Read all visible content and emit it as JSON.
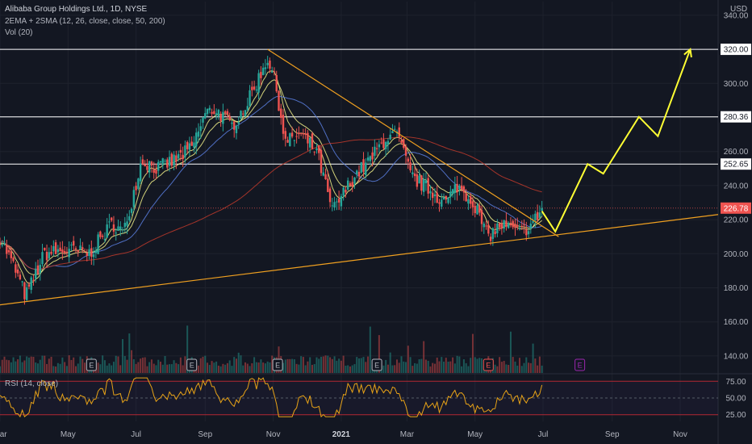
{
  "header": {
    "title": "Alibaba Group Holdings Ltd., 1D, NYSE",
    "indicator_ma": "2EMA + 2SMA (12, 26, close, close, 50, 200)",
    "indicator_vol": "Vol (20)",
    "currency": "USD"
  },
  "rsi": {
    "label": "RSI (14, close)",
    "levels": [
      "75.00",
      "50.00",
      "25.00"
    ]
  },
  "colors": {
    "background": "#131722",
    "up": "#26a69a",
    "down": "#ef5350",
    "ema_fast": "#f5f28a",
    "ema_slow": "#5b7fe0",
    "sma_200": "#c0392b",
    "trendline": "#f0a020",
    "projection": "#ffff33",
    "level_line": "#ffffff",
    "rsi_line": "#e8a317",
    "rsi_band": "#b22833",
    "earnings": "#b2b5be",
    "earnings_upcoming": "#9c27b0",
    "last_price": "#ef5350"
  },
  "chart_data": {
    "type": "candlestick",
    "symbol": "Alibaba Group Holdings Ltd.",
    "interval": "1D",
    "exchange": "NYSE",
    "y_axis": {
      "unit": "USD",
      "ticks": [
        140,
        160,
        180,
        200,
        220,
        240,
        260,
        280,
        300,
        320,
        340
      ],
      "tick_labels": [
        "140.00",
        "160.00",
        "180.00",
        "200.00",
        "220.00",
        "240.00",
        "260.00",
        "280.00",
        "300.00",
        "320.00",
        "340.00"
      ],
      "range": [
        130,
        348
      ]
    },
    "x_axis": {
      "labels": [
        "Mar",
        "May",
        "Jul",
        "Sep",
        "Nov",
        "2021",
        "Mar",
        "May",
        "Jul",
        "Sep",
        "Nov"
      ],
      "dates": [
        "2020-03-01",
        "2020-05-01",
        "2020-07-01",
        "2020-09-01",
        "2020-11-01",
        "2021-01-01",
        "2021-03-01",
        "2021-05-01",
        "2021-07-01",
        "2021-09-01",
        "2021-11-01"
      ],
      "range": [
        "2020-03-01",
        "2021-12-05"
      ]
    },
    "horizontal_levels": [
      {
        "price": 320.0,
        "label": "320.00"
      },
      {
        "price": 280.36,
        "label": "280.36"
      },
      {
        "price": 252.65,
        "label": "252.65"
      }
    ],
    "last_price": {
      "price": 226.78,
      "label": "226.78"
    },
    "price_path": [
      {
        "date": "2020-03-01",
        "close": 210
      },
      {
        "date": "2020-03-15",
        "close": 190
      },
      {
        "date": "2020-03-24",
        "close": 175
      },
      {
        "date": "2020-04-10",
        "close": 200
      },
      {
        "date": "2020-05-01",
        "close": 202
      },
      {
        "date": "2020-05-20",
        "close": 200
      },
      {
        "date": "2020-06-10",
        "close": 218
      },
      {
        "date": "2020-06-20",
        "close": 212
      },
      {
        "date": "2020-07-06",
        "close": 255
      },
      {
        "date": "2020-07-20",
        "close": 250
      },
      {
        "date": "2020-08-05",
        "close": 255
      },
      {
        "date": "2020-08-20",
        "close": 262
      },
      {
        "date": "2020-09-01",
        "close": 282
      },
      {
        "date": "2020-09-10",
        "close": 285
      },
      {
        "date": "2020-09-25",
        "close": 275
      },
      {
        "date": "2020-10-10",
        "close": 290
      },
      {
        "date": "2020-10-27",
        "close": 315
      },
      {
        "date": "2020-11-03",
        "close": 300
      },
      {
        "date": "2020-11-12",
        "close": 265
      },
      {
        "date": "2020-11-25",
        "close": 270
      },
      {
        "date": "2020-12-10",
        "close": 260
      },
      {
        "date": "2020-12-24",
        "close": 225
      },
      {
        "date": "2020-12-31",
        "close": 232
      },
      {
        "date": "2021-01-12",
        "close": 245
      },
      {
        "date": "2021-01-27",
        "close": 255
      },
      {
        "date": "2021-02-10",
        "close": 268
      },
      {
        "date": "2021-02-20",
        "close": 270
      },
      {
        "date": "2021-03-05",
        "close": 245
      },
      {
        "date": "2021-03-20",
        "close": 238
      },
      {
        "date": "2021-04-05",
        "close": 230
      },
      {
        "date": "2021-04-15",
        "close": 240
      },
      {
        "date": "2021-04-30",
        "close": 230
      },
      {
        "date": "2021-05-12",
        "close": 210
      },
      {
        "date": "2021-05-25",
        "close": 217
      },
      {
        "date": "2021-06-10",
        "close": 212
      },
      {
        "date": "2021-06-22",
        "close": 218
      },
      {
        "date": "2021-06-30",
        "close": 226.78
      }
    ],
    "trendlines": [
      {
        "name": "descending",
        "points": [
          {
            "date": "2020-10-27",
            "price": 320
          },
          {
            "date": "2021-07-15",
            "price": 210
          }
        ]
      },
      {
        "name": "ascending",
        "points": [
          {
            "date": "2020-03-01",
            "price": 170
          },
          {
            "date": "2021-12-05",
            "price": 223
          }
        ]
      }
    ],
    "projection_path": [
      {
        "date": "2021-06-30",
        "price": 225
      },
      {
        "date": "2021-07-12",
        "price": 213
      },
      {
        "date": "2021-08-10",
        "price": 252.65
      },
      {
        "date": "2021-08-24",
        "price": 247
      },
      {
        "date": "2021-09-25",
        "price": 280.36
      },
      {
        "date": "2021-10-12",
        "price": 269
      },
      {
        "date": "2021-11-10",
        "price": 320
      }
    ],
    "earnings_markers": [
      {
        "date": "2020-05-22",
        "label": "E",
        "type": "past"
      },
      {
        "date": "2020-08-20",
        "label": "E",
        "type": "past"
      },
      {
        "date": "2020-11-05",
        "label": "E",
        "type": "past"
      },
      {
        "date": "2021-02-02",
        "label": "E",
        "type": "past"
      },
      {
        "date": "2021-05-13",
        "label": "E",
        "type": "past-bad"
      },
      {
        "date": "2021-08-03",
        "label": "E",
        "type": "upcoming"
      }
    ],
    "rsi_levels": [
      75,
      50,
      25
    ],
    "grid": true,
    "legend": "top-left"
  }
}
